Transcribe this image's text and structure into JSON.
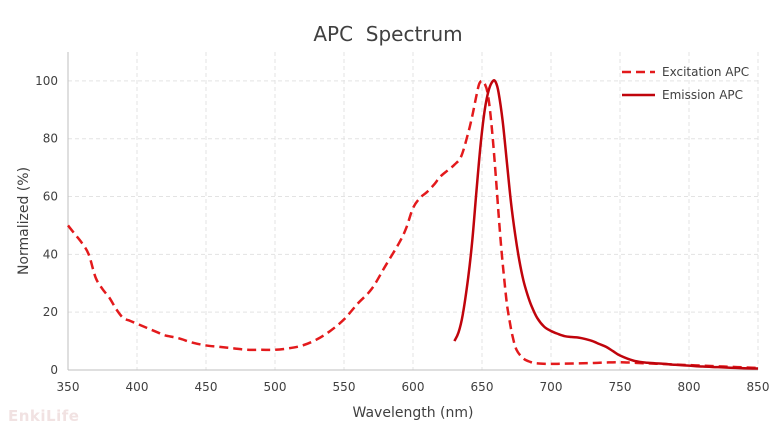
{
  "watermark": "EnkiLife",
  "chart_data": {
    "type": "line",
    "title": "APC  Spectrum",
    "xlabel": "Wavelength (nm)",
    "ylabel": "Normalized (%)",
    "xlim": [
      350,
      850
    ],
    "ylim": [
      0,
      110
    ],
    "x_ticks": [
      350,
      400,
      450,
      500,
      550,
      600,
      650,
      700,
      750,
      800,
      850
    ],
    "y_ticks": [
      0,
      20,
      40,
      60,
      80,
      100
    ],
    "grid": true,
    "legend_position": "top-right",
    "series": [
      {
        "name": "Excitation APC",
        "color": "#e31a1c",
        "dash": "dashed",
        "x": [
          350,
          355,
          360,
          365,
          370,
          375,
          380,
          385,
          390,
          395,
          400,
          405,
          410,
          415,
          420,
          430,
          440,
          450,
          460,
          470,
          480,
          490,
          500,
          510,
          520,
          530,
          540,
          550,
          560,
          570,
          580,
          590,
          595,
          600,
          605,
          610,
          615,
          620,
          625,
          630,
          635,
          640,
          643,
          646,
          648,
          650,
          652,
          654,
          656,
          658,
          660,
          662,
          664,
          666,
          668,
          670,
          672,
          675,
          680,
          685,
          690,
          700,
          710,
          720,
          730,
          740,
          750,
          760,
          770,
          780,
          790,
          800,
          810,
          820,
          830,
          840,
          850
        ],
        "y": [
          50,
          47,
          44,
          40,
          32,
          28,
          25,
          21,
          18,
          17,
          16,
          15,
          14,
          13,
          12,
          11,
          9.5,
          8.5,
          8,
          7.5,
          7,
          7,
          7,
          7.5,
          8.5,
          10.5,
          13.5,
          17.5,
          23,
          28,
          36,
          44,
          49,
          56,
          59.5,
          61.5,
          64,
          67,
          69,
          71,
          74,
          82,
          88,
          95,
          99,
          100,
          99,
          96,
          89,
          79,
          67,
          54,
          42,
          32,
          23,
          17,
          12,
          7,
          4,
          2.8,
          2.3,
          2.1,
          2.2,
          2.3,
          2.4,
          2.6,
          2.7,
          2.5,
          2.3,
          2.1,
          1.9,
          1.7,
          1.5,
          1.3,
          1.1,
          0.9,
          0.7
        ]
      },
      {
        "name": "Emission APC",
        "color": "#c0040c",
        "dash": "solid",
        "x": [
          630,
          633,
          636,
          640,
          643,
          646,
          649,
          652,
          655,
          658,
          660,
          662,
          665,
          668,
          671,
          674,
          677,
          680,
          683,
          686,
          690,
          695,
          700,
          705,
          710,
          715,
          720,
          725,
          730,
          735,
          740,
          745,
          750,
          760,
          770,
          780,
          790,
          800,
          810,
          820,
          830,
          840,
          850
        ],
        "y": [
          10,
          13,
          19,
          32,
          45,
          62,
          78,
          90,
          97,
          100,
          99.5,
          96,
          86,
          72,
          58,
          47,
          38,
          31,
          26,
          22,
          18,
          15,
          13.5,
          12.5,
          11.7,
          11.4,
          11.2,
          10.7,
          10,
          9,
          8,
          6.5,
          5,
          3.2,
          2.5,
          2.2,
          1.8,
          1.5,
          1.2,
          1,
          0.8,
          0.6,
          0.5
        ]
      }
    ]
  }
}
